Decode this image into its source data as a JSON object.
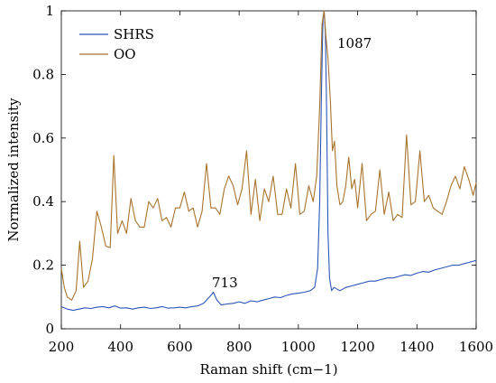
{
  "chart_data": {
    "type": "line",
    "title": "",
    "xlabel": "Raman shift (cm−1)",
    "ylabel": "Normalized intensity",
    "xlim": [
      200,
      1600
    ],
    "ylim": [
      0,
      1
    ],
    "xticks": [
      200,
      400,
      600,
      800,
      1000,
      1200,
      1400,
      1600
    ],
    "yticks": [
      0,
      0.2,
      0.4,
      0.6,
      0.8,
      1
    ],
    "ytick_labels": [
      "0",
      "0.2",
      "0.4",
      "0.6",
      "0.8",
      "1"
    ],
    "grid": false,
    "legend": "top-left",
    "series": [
      {
        "name": "SHRS",
        "color": "#2b55b8",
        "points": [
          [
            200,
            0.07
          ],
          [
            220,
            0.062
          ],
          [
            240,
            0.058
          ],
          [
            260,
            0.062
          ],
          [
            280,
            0.066
          ],
          [
            300,
            0.064
          ],
          [
            320,
            0.068
          ],
          [
            340,
            0.07
          ],
          [
            360,
            0.066
          ],
          [
            380,
            0.072
          ],
          [
            400,
            0.065
          ],
          [
            420,
            0.066
          ],
          [
            440,
            0.062
          ],
          [
            460,
            0.066
          ],
          [
            480,
            0.068
          ],
          [
            500,
            0.064
          ],
          [
            520,
            0.066
          ],
          [
            540,
            0.07
          ],
          [
            560,
            0.065
          ],
          [
            580,
            0.066
          ],
          [
            600,
            0.068
          ],
          [
            620,
            0.066
          ],
          [
            640,
            0.07
          ],
          [
            660,
            0.072
          ],
          [
            680,
            0.08
          ],
          [
            700,
            0.1
          ],
          [
            713,
            0.115
          ],
          [
            725,
            0.09
          ],
          [
            740,
            0.075
          ],
          [
            760,
            0.078
          ],
          [
            780,
            0.08
          ],
          [
            800,
            0.085
          ],
          [
            820,
            0.08
          ],
          [
            840,
            0.088
          ],
          [
            860,
            0.085
          ],
          [
            880,
            0.09
          ],
          [
            900,
            0.095
          ],
          [
            920,
            0.1
          ],
          [
            940,
            0.098
          ],
          [
            960,
            0.105
          ],
          [
            980,
            0.11
          ],
          [
            1000,
            0.112
          ],
          [
            1020,
            0.115
          ],
          [
            1040,
            0.12
          ],
          [
            1055,
            0.13
          ],
          [
            1065,
            0.19
          ],
          [
            1072,
            0.4
          ],
          [
            1078,
            0.75
          ],
          [
            1083,
            0.97
          ],
          [
            1087,
            1.0
          ],
          [
            1091,
            0.93
          ],
          [
            1095,
            0.7
          ],
          [
            1100,
            0.3
          ],
          [
            1105,
            0.16
          ],
          [
            1112,
            0.12
          ],
          [
            1120,
            0.13
          ],
          [
            1140,
            0.12
          ],
          [
            1160,
            0.13
          ],
          [
            1180,
            0.135
          ],
          [
            1200,
            0.14
          ],
          [
            1220,
            0.145
          ],
          [
            1240,
            0.15
          ],
          [
            1260,
            0.15
          ],
          [
            1280,
            0.155
          ],
          [
            1300,
            0.16
          ],
          [
            1320,
            0.16
          ],
          [
            1340,
            0.165
          ],
          [
            1360,
            0.17
          ],
          [
            1380,
            0.168
          ],
          [
            1400,
            0.175
          ],
          [
            1420,
            0.18
          ],
          [
            1440,
            0.178
          ],
          [
            1460,
            0.185
          ],
          [
            1480,
            0.19
          ],
          [
            1500,
            0.195
          ],
          [
            1520,
            0.2
          ],
          [
            1540,
            0.2
          ],
          [
            1560,
            0.205
          ],
          [
            1580,
            0.21
          ],
          [
            1600,
            0.215
          ]
        ]
      },
      {
        "name": "OO",
        "color": "#a8732c",
        "points": [
          [
            200,
            0.19
          ],
          [
            210,
            0.13
          ],
          [
            220,
            0.1
          ],
          [
            235,
            0.09
          ],
          [
            250,
            0.12
          ],
          [
            262,
            0.275
          ],
          [
            275,
            0.13
          ],
          [
            290,
            0.15
          ],
          [
            305,
            0.22
          ],
          [
            320,
            0.37
          ],
          [
            335,
            0.32
          ],
          [
            350,
            0.26
          ],
          [
            365,
            0.255
          ],
          [
            377,
            0.545
          ],
          [
            390,
            0.3
          ],
          [
            405,
            0.34
          ],
          [
            420,
            0.3
          ],
          [
            435,
            0.41
          ],
          [
            450,
            0.34
          ],
          [
            465,
            0.32
          ],
          [
            480,
            0.32
          ],
          [
            495,
            0.4
          ],
          [
            510,
            0.38
          ],
          [
            525,
            0.41
          ],
          [
            540,
            0.34
          ],
          [
            555,
            0.35
          ],
          [
            570,
            0.32
          ],
          [
            585,
            0.38
          ],
          [
            600,
            0.38
          ],
          [
            615,
            0.43
          ],
          [
            630,
            0.37
          ],
          [
            645,
            0.38
          ],
          [
            660,
            0.32
          ],
          [
            675,
            0.37
          ],
          [
            690,
            0.52
          ],
          [
            705,
            0.38
          ],
          [
            720,
            0.38
          ],
          [
            735,
            0.36
          ],
          [
            750,
            0.44
          ],
          [
            765,
            0.48
          ],
          [
            780,
            0.45
          ],
          [
            795,
            0.39
          ],
          [
            810,
            0.44
          ],
          [
            825,
            0.56
          ],
          [
            840,
            0.36
          ],
          [
            855,
            0.47
          ],
          [
            870,
            0.34
          ],
          [
            885,
            0.44
          ],
          [
            900,
            0.4
          ],
          [
            915,
            0.48
          ],
          [
            930,
            0.36
          ],
          [
            945,
            0.36
          ],
          [
            960,
            0.44
          ],
          [
            975,
            0.38
          ],
          [
            990,
            0.52
          ],
          [
            1005,
            0.36
          ],
          [
            1020,
            0.37
          ],
          [
            1035,
            0.45
          ],
          [
            1050,
            0.4
          ],
          [
            1062,
            0.48
          ],
          [
            1072,
            0.7
          ],
          [
            1080,
            0.96
          ],
          [
            1087,
            1.0
          ],
          [
            1093,
            0.92
          ],
          [
            1100,
            0.85
          ],
          [
            1108,
            0.72
          ],
          [
            1115,
            0.56
          ],
          [
            1122,
            0.59
          ],
          [
            1130,
            0.45
          ],
          [
            1140,
            0.39
          ],
          [
            1150,
            0.4
          ],
          [
            1160,
            0.45
          ],
          [
            1170,
            0.54
          ],
          [
            1180,
            0.44
          ],
          [
            1190,
            0.47
          ],
          [
            1200,
            0.38
          ],
          [
            1215,
            0.52
          ],
          [
            1230,
            0.34
          ],
          [
            1245,
            0.36
          ],
          [
            1260,
            0.37
          ],
          [
            1275,
            0.5
          ],
          [
            1290,
            0.36
          ],
          [
            1305,
            0.43
          ],
          [
            1320,
            0.34
          ],
          [
            1335,
            0.36
          ],
          [
            1350,
            0.35
          ],
          [
            1365,
            0.61
          ],
          [
            1380,
            0.39
          ],
          [
            1395,
            0.4
          ],
          [
            1410,
            0.56
          ],
          [
            1425,
            0.4
          ],
          [
            1440,
            0.42
          ],
          [
            1455,
            0.38
          ],
          [
            1470,
            0.37
          ],
          [
            1485,
            0.36
          ],
          [
            1500,
            0.4
          ],
          [
            1515,
            0.45
          ],
          [
            1530,
            0.48
          ],
          [
            1545,
            0.44
          ],
          [
            1560,
            0.51
          ],
          [
            1575,
            0.47
          ],
          [
            1590,
            0.42
          ],
          [
            1600,
            0.46
          ]
        ]
      }
    ],
    "annotations": [
      {
        "text": "1087",
        "x": 1087,
        "y": 1.0
      },
      {
        "text": "713",
        "x": 713,
        "y": 0.115
      }
    ]
  }
}
